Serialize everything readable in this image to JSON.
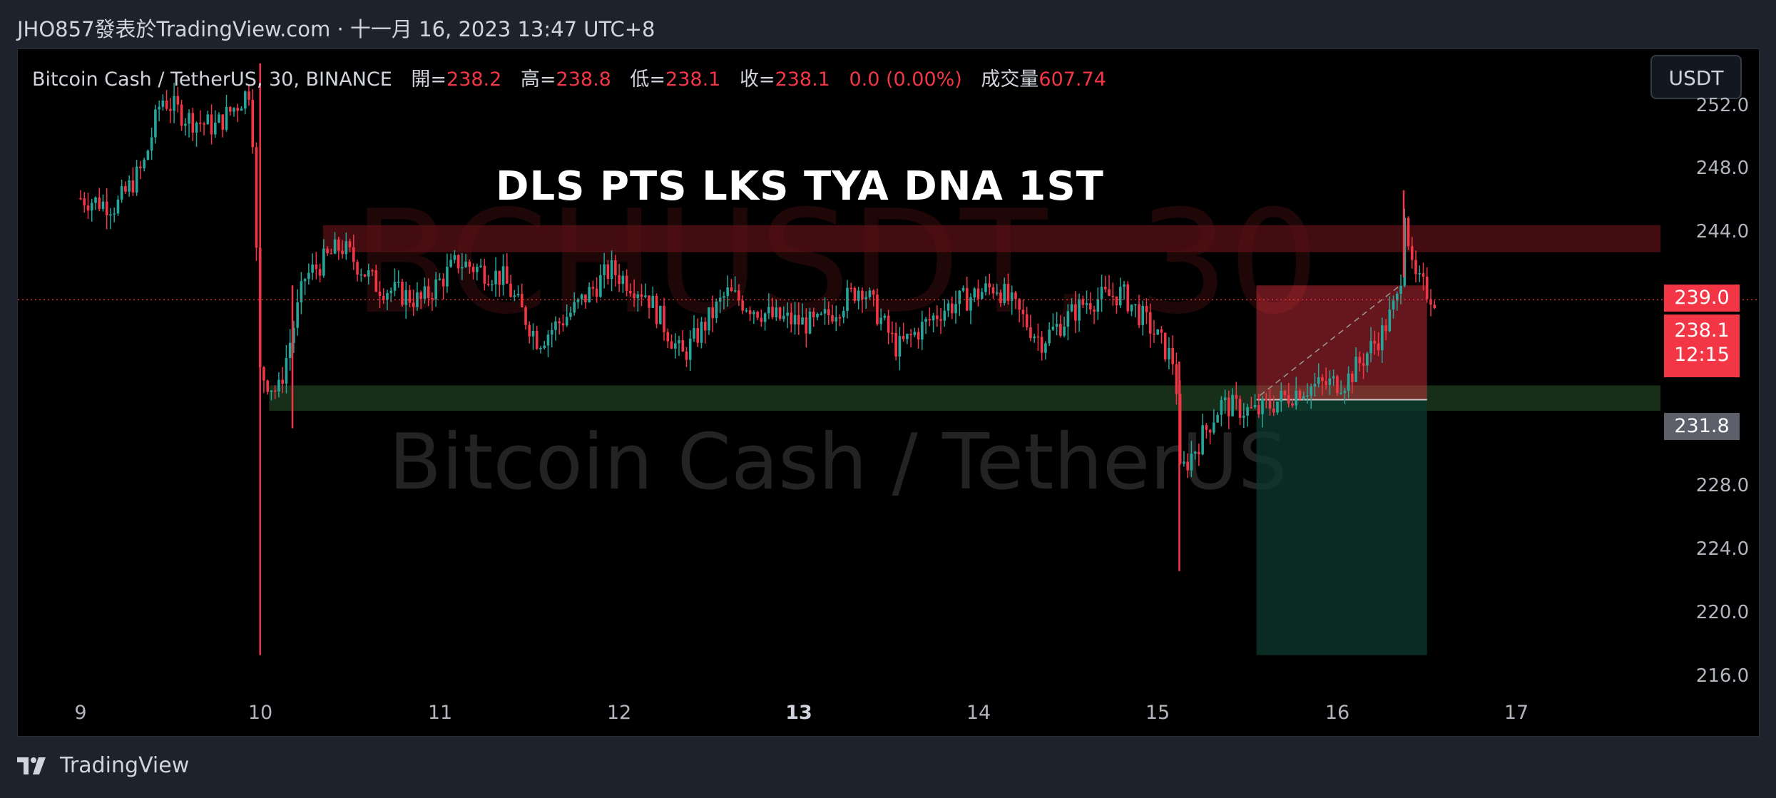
{
  "header": {
    "publish_info": "JHO857發表於TradingView.com · 十一月 16, 2023 13:47 UTC+8"
  },
  "legend": {
    "symbol": "Bitcoin Cash / TetherUS, 30, BINANCE",
    "open_label": "開=",
    "open": "238.2",
    "high_label": "高=",
    "high": "238.8",
    "low_label": "低=",
    "low": "238.1",
    "close_label": "收=",
    "close": "238.1",
    "change": "0.0 (0.00%)",
    "volume_label": "成交量",
    "volume": "607.74"
  },
  "currency_button": "USDT",
  "annotation": "DLS PTS LKS TYA DNA 1ST",
  "watermark": {
    "ticker": "BCHUSDT, 30",
    "name": "Bitcoin Cash / TetherUS"
  },
  "price_tags": {
    "target": "239.0",
    "last": "238.1",
    "countdown": "12:15",
    "entry": "231.8"
  },
  "footer": {
    "brand": "TradingView"
  },
  "colors": {
    "up": "#26a69a",
    "down": "#f23645",
    "bg": "#000000",
    "panel": "#1e222d"
  },
  "chart_data": {
    "type": "candlestick",
    "timeframe": "30",
    "x_tick_labels": [
      "9",
      "10",
      "11",
      "12",
      "13",
      "14",
      "15",
      "16",
      "17"
    ],
    "y_tick_labels": [
      "252.0",
      "248.0",
      "244.0",
      "228.0",
      "224.0",
      "220.0",
      "216.0"
    ],
    "ylim": [
      214.2,
      253.1
    ],
    "waypoints": [
      {
        "day": 9.0,
        "price": 244.5
      },
      {
        "day": 9.2,
        "price": 244.0
      },
      {
        "day": 9.35,
        "price": 246.5
      },
      {
        "day": 9.45,
        "price": 250.8
      },
      {
        "day": 9.6,
        "price": 249.5
      },
      {
        "day": 9.75,
        "price": 249.0
      },
      {
        "day": 9.88,
        "price": 250.5
      },
      {
        "day": 9.95,
        "price": 251.5
      },
      {
        "day": 10.0,
        "price": 233.5
      },
      {
        "day": 10.1,
        "price": 232.2
      },
      {
        "day": 10.25,
        "price": 239.5
      },
      {
        "day": 10.45,
        "price": 241.5
      },
      {
        "day": 10.65,
        "price": 239.0
      },
      {
        "day": 10.9,
        "price": 238.0
      },
      {
        "day": 11.1,
        "price": 240.5
      },
      {
        "day": 11.35,
        "price": 239.5
      },
      {
        "day": 11.55,
        "price": 235.5
      },
      {
        "day": 11.75,
        "price": 237.5
      },
      {
        "day": 11.95,
        "price": 240.0
      },
      {
        "day": 12.15,
        "price": 238.5
      },
      {
        "day": 12.35,
        "price": 234.5
      },
      {
        "day": 12.6,
        "price": 238.5
      },
      {
        "day": 12.85,
        "price": 237.0
      },
      {
        "day": 13.1,
        "price": 236.5
      },
      {
        "day": 13.35,
        "price": 239.0
      },
      {
        "day": 13.55,
        "price": 235.0
      },
      {
        "day": 13.8,
        "price": 237.5
      },
      {
        "day": 14.1,
        "price": 239.0
      },
      {
        "day": 14.35,
        "price": 235.5
      },
      {
        "day": 14.6,
        "price": 238.0
      },
      {
        "day": 14.8,
        "price": 238.5
      },
      {
        "day": 14.95,
        "price": 236.5
      },
      {
        "day": 15.1,
        "price": 234.0
      },
      {
        "day": 15.12,
        "price": 227.0
      },
      {
        "day": 15.35,
        "price": 231.5
      },
      {
        "day": 15.55,
        "price": 231.0
      },
      {
        "day": 15.8,
        "price": 232.5
      },
      {
        "day": 16.05,
        "price": 233.0
      },
      {
        "day": 16.25,
        "price": 236.0
      },
      {
        "day": 16.35,
        "price": 238.5
      },
      {
        "day": 16.37,
        "price": 244.5
      },
      {
        "day": 16.42,
        "price": 239.5
      },
      {
        "day": 16.55,
        "price": 238.1
      }
    ],
    "spikes": [
      {
        "day": 10.0,
        "low": 215.7,
        "high": 253.0
      },
      {
        "day": 10.18,
        "low": 230.0,
        "high": 239.0
      },
      {
        "day": 15.12,
        "low": 221.0,
        "high": 234.2
      },
      {
        "day": 16.37,
        "low": 239.5,
        "high": 245.0
      }
    ],
    "zones": [
      {
        "name": "resistance",
        "y_bottom": 241.1,
        "y_top": 242.8,
        "x_from": 10.35,
        "x_to": 17.8
      },
      {
        "name": "support",
        "y_bottom": 231.1,
        "y_top": 232.7,
        "x_from": 10.05,
        "x_to": 17.8
      }
    ],
    "position": {
      "type": "long",
      "entry": 231.8,
      "target": 239.0,
      "stop": 215.7,
      "x_from": 15.55,
      "x_to": 16.5
    },
    "last_price": 238.1
  }
}
